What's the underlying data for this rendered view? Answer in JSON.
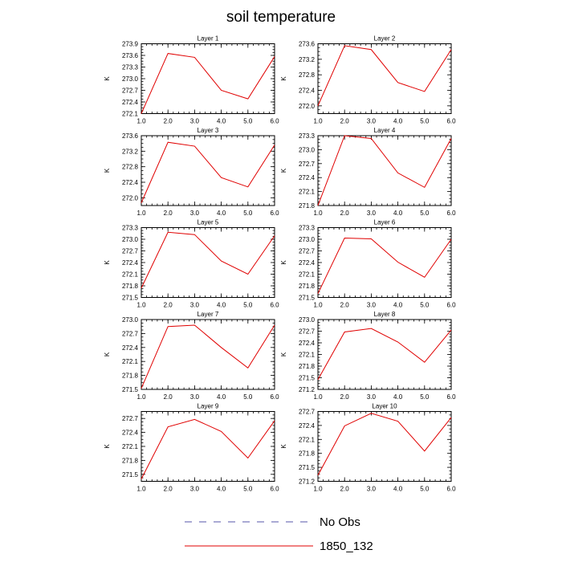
{
  "chart_data": {
    "type": "line",
    "title": "soil temperature",
    "legend": {
      "placement": "bottom-center",
      "entries": [
        {
          "label": "No Obs",
          "color": "#5555aa",
          "style": "dashed"
        },
        {
          "label": "1850_132",
          "color": "#e00000",
          "style": "solid"
        }
      ]
    },
    "panels": [
      {
        "title": "Layer 1",
        "ylabel": "K",
        "xlim": [
          1,
          6
        ],
        "ylim": [
          272.1,
          273.9
        ],
        "yticks": [
          "272.1",
          "272.4",
          "272.7",
          "273.0",
          "273.3",
          "273.6",
          "273.9"
        ],
        "xticks": [
          "1.0",
          "2.0",
          "3.0",
          "4.0",
          "5.0",
          "6.0"
        ],
        "x": [
          1,
          2,
          3,
          4,
          5,
          6
        ],
        "series": [
          {
            "name": "1850_132",
            "values": [
              272.1,
              273.65,
              273.55,
              272.7,
              272.48,
              273.57
            ]
          }
        ]
      },
      {
        "title": "Layer 2",
        "ylabel": "K",
        "xlim": [
          1,
          6
        ],
        "ylim": [
          271.8,
          273.6
        ],
        "yticks": [
          "272.0",
          "272.4",
          "272.8",
          "273.2",
          "273.6"
        ],
        "xticks": [
          "1.0",
          "2.0",
          "3.0",
          "4.0",
          "5.0",
          "6.0"
        ],
        "x": [
          1,
          2,
          3,
          4,
          5,
          6
        ],
        "series": [
          {
            "name": "1850_132",
            "values": [
              272.0,
              273.55,
              273.45,
              272.6,
              272.37,
              273.45
            ]
          }
        ]
      },
      {
        "title": "Layer 3",
        "ylabel": "K",
        "xlim": [
          1,
          6
        ],
        "ylim": [
          271.8,
          273.6
        ],
        "yticks": [
          "272.0",
          "272.4",
          "272.8",
          "273.2",
          "273.6"
        ],
        "xticks": [
          "1.0",
          "2.0",
          "3.0",
          "4.0",
          "5.0",
          "6.0"
        ],
        "x": [
          1,
          2,
          3,
          4,
          5,
          6
        ],
        "series": [
          {
            "name": "1850_132",
            "values": [
              271.87,
              273.43,
              273.33,
              272.52,
              272.28,
              273.36
            ]
          }
        ]
      },
      {
        "title": "Layer 4",
        "ylabel": "K",
        "xlim": [
          1,
          6
        ],
        "ylim": [
          271.8,
          273.3
        ],
        "yticks": [
          "271.8",
          "272.1",
          "272.4",
          "272.7",
          "273.0",
          "273.3"
        ],
        "xticks": [
          "1.0",
          "2.0",
          "3.0",
          "4.0",
          "5.0",
          "6.0"
        ],
        "x": [
          1,
          2,
          3,
          4,
          5,
          6
        ],
        "series": [
          {
            "name": "1850_132",
            "values": [
              271.8,
              273.3,
              273.24,
              272.5,
              272.19,
              273.24
            ]
          }
        ]
      },
      {
        "title": "Layer 5",
        "ylabel": "K",
        "xlim": [
          1,
          6
        ],
        "ylim": [
          271.5,
          273.3
        ],
        "yticks": [
          "271.5",
          "271.8",
          "272.1",
          "272.4",
          "272.7",
          "273.0",
          "273.3"
        ],
        "xticks": [
          "1.0",
          "2.0",
          "3.0",
          "4.0",
          "5.0",
          "6.0"
        ],
        "x": [
          1,
          2,
          3,
          4,
          5,
          6
        ],
        "series": [
          {
            "name": "1850_132",
            "values": [
              271.74,
              273.18,
              273.12,
              272.44,
              272.1,
              273.09
            ]
          }
        ]
      },
      {
        "title": "Layer 6",
        "ylabel": "K",
        "xlim": [
          1,
          6
        ],
        "ylim": [
          271.5,
          273.3
        ],
        "yticks": [
          "271.5",
          "271.8",
          "272.1",
          "272.4",
          "272.7",
          "273.0",
          "273.3"
        ],
        "xticks": [
          "1.0",
          "2.0",
          "3.0",
          "4.0",
          "5.0",
          "6.0"
        ],
        "x": [
          1,
          2,
          3,
          4,
          5,
          6
        ],
        "series": [
          {
            "name": "1850_132",
            "values": [
              271.6,
              273.03,
              273.01,
              272.41,
              272.02,
              273.0
            ]
          }
        ]
      },
      {
        "title": "Layer 7",
        "ylabel": "K",
        "xlim": [
          1,
          6
        ],
        "ylim": [
          271.5,
          273.0
        ],
        "yticks": [
          "271.5",
          "271.8",
          "272.1",
          "272.4",
          "272.7",
          "273.0"
        ],
        "xticks": [
          "1.0",
          "2.0",
          "3.0",
          "4.0",
          "5.0",
          "6.0"
        ],
        "x": [
          1,
          2,
          3,
          4,
          5,
          6
        ],
        "series": [
          {
            "name": "1850_132",
            "values": [
              271.52,
              272.85,
              272.88,
              272.4,
              271.96,
              272.88
            ]
          }
        ]
      },
      {
        "title": "Layer 8",
        "ylabel": "K",
        "xlim": [
          1,
          6
        ],
        "ylim": [
          271.2,
          273.0
        ],
        "yticks": [
          "271.2",
          "271.5",
          "271.8",
          "272.1",
          "272.4",
          "272.7",
          "273.0"
        ],
        "xticks": [
          "1.0",
          "2.0",
          "3.0",
          "4.0",
          "5.0",
          "6.0"
        ],
        "x": [
          1,
          2,
          3,
          4,
          5,
          6
        ],
        "series": [
          {
            "name": "1850_132",
            "values": [
              271.45,
              272.68,
              272.77,
              272.42,
              271.9,
              272.73
            ]
          }
        ]
      },
      {
        "title": "Layer 9",
        "ylabel": "K",
        "xlim": [
          1,
          6
        ],
        "ylim": [
          271.35,
          272.85
        ],
        "yticks": [
          "271.5",
          "271.8",
          "272.1",
          "272.4",
          "272.7"
        ],
        "xticks": [
          "1.0",
          "2.0",
          "3.0",
          "4.0",
          "5.0",
          "6.0"
        ],
        "x": [
          1,
          2,
          3,
          4,
          5,
          6
        ],
        "series": [
          {
            "name": "1850_132",
            "values": [
              271.4,
              272.52,
              272.68,
              272.42,
              271.85,
              272.65
            ]
          }
        ]
      },
      {
        "title": "Layer 10",
        "ylabel": "K",
        "xlim": [
          1,
          6
        ],
        "ylim": [
          271.2,
          272.7
        ],
        "yticks": [
          "271.2",
          "271.5",
          "271.8",
          "272.1",
          "272.4",
          "272.7"
        ],
        "xticks": [
          "1.0",
          "2.0",
          "3.0",
          "4.0",
          "5.0",
          "6.0"
        ],
        "x": [
          1,
          2,
          3,
          4,
          5,
          6
        ],
        "series": [
          {
            "name": "1850_132",
            "values": [
              271.33,
              272.39,
              272.66,
              272.49,
              271.85,
              272.57
            ]
          }
        ]
      }
    ]
  }
}
